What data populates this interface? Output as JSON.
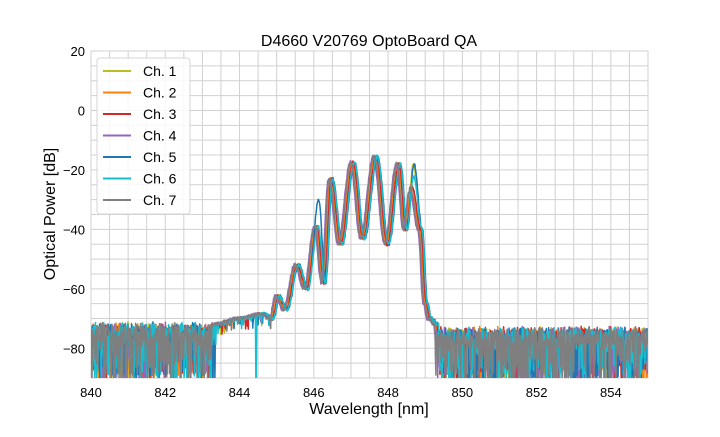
{
  "chart_data": {
    "type": "line",
    "title": "D4660 V20769 OptoBoard QA",
    "xlabel": "Wavelength [nm]",
    "ylabel": "Optical Power [dB]",
    "xlim": [
      840,
      855
    ],
    "ylim": [
      -90,
      20
    ],
    "xticks": [
      840,
      842,
      844,
      846,
      848,
      850,
      852,
      854
    ],
    "yticks": [
      20,
      0,
      -20,
      -40,
      -60,
      -80
    ],
    "grid": true,
    "minor_grid": true,
    "legend_position": "top-left",
    "profile": [
      [
        843.3,
        -72
      ],
      [
        844.0,
        -70
      ],
      [
        844.6,
        -68.5
      ],
      [
        844.85,
        -70
      ],
      [
        845.01,
        -62.5
      ],
      [
        845.22,
        -67
      ],
      [
        845.53,
        -52
      ],
      [
        845.78,
        -60
      ],
      [
        846.06,
        -39
      ],
      [
        846.25,
        -58
      ],
      [
        846.44,
        -23
      ],
      [
        846.7,
        -45
      ],
      [
        847.03,
        -17.5
      ],
      [
        847.3,
        -43
      ],
      [
        847.65,
        -15.5
      ],
      [
        847.95,
        -45
      ],
      [
        848.27,
        -18
      ],
      [
        848.45,
        -40
      ],
      [
        848.63,
        -20
      ],
      [
        848.85,
        -40
      ],
      [
        849.0,
        -65
      ],
      [
        849.1,
        -70
      ],
      [
        849.3,
        -72
      ]
    ],
    "noise_floor": {
      "top": -71,
      "bottom": -90,
      "left_end": 843.3,
      "right_start": 849.3
    },
    "series": [
      {
        "name": "Ch. 1",
        "color": "#bcbd22",
        "shift": 0.05,
        "last_peak": -18
      },
      {
        "name": "Ch. 2",
        "color": "#ff7f0e",
        "shift": 0.0,
        "last_peak": -25
      },
      {
        "name": "Ch. 3",
        "color": "#d62728",
        "shift": 0.03,
        "last_peak": -26
      },
      {
        "name": "Ch. 4",
        "color": "#9467bd",
        "shift": -0.05,
        "last_peak": -27
      },
      {
        "name": "Ch. 5",
        "color": "#1f77b4",
        "shift": 0.07,
        "last_peak": -18
      },
      {
        "name": "Ch. 6",
        "color": "#17becf",
        "shift": 0.06,
        "last_peak": -22
      },
      {
        "name": "Ch. 7",
        "color": "#7f7f7f",
        "shift": -0.03,
        "last_peak": -26
      }
    ]
  }
}
